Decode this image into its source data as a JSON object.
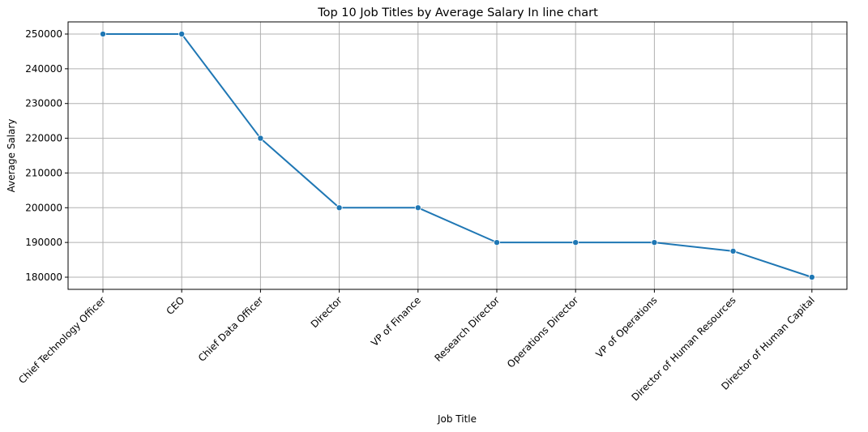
{
  "chart_data": {
    "type": "line",
    "title": "Top 10 Job Titles by Average Salary In line chart",
    "xlabel": "Job Title",
    "ylabel": "Average Salary",
    "categories": [
      "Chief Technology Officer",
      "CEO",
      "Chief Data Officer",
      "Director",
      "VP of Finance",
      "Research Director",
      "Operations Director",
      "VP of Operations",
      "Director of Human Resources",
      "Director of Human Capital"
    ],
    "series": [
      {
        "values": [
          250000,
          250000,
          220000,
          200000,
          200000,
          190000,
          190000,
          190000,
          187500,
          180000
        ],
        "color": "#1f77b4",
        "marker": "circle"
      }
    ],
    "ylim": [
      176500,
      253500
    ],
    "yticks": [
      180000,
      190000,
      200000,
      210000,
      220000,
      230000,
      240000,
      250000
    ],
    "grid": true,
    "x_tick_rotation_deg": 45
  }
}
